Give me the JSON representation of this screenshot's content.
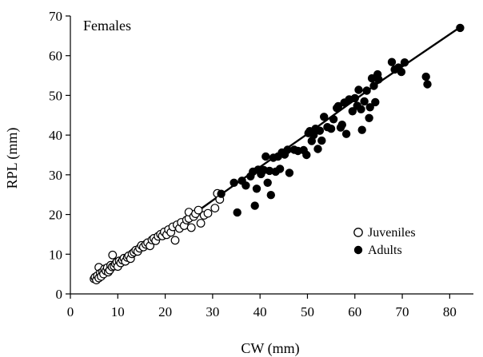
{
  "chart_data": {
    "type": "scatter",
    "title": "Females",
    "xlabel": "CW (mm)",
    "ylabel": "RPL (mm)",
    "xlim": [
      0,
      85
    ],
    "ylim": [
      0,
      70
    ],
    "x_ticks": [
      0,
      10,
      20,
      30,
      40,
      50,
      60,
      70,
      80
    ],
    "y_ticks": [
      0,
      10,
      20,
      30,
      40,
      50,
      60,
      70
    ],
    "grid": false,
    "legend_position": "lower-right",
    "series": [
      {
        "name": "Juveniles",
        "marker": "open-circle",
        "points": [
          [
            5.0,
            3.8
          ],
          [
            5.2,
            4.2
          ],
          [
            5.5,
            3.5
          ],
          [
            5.7,
            4.6
          ],
          [
            6.0,
            4.0
          ],
          [
            6.0,
            6.7
          ],
          [
            6.3,
            5.2
          ],
          [
            6.5,
            4.4
          ],
          [
            6.8,
            5.6
          ],
          [
            7.0,
            5.0
          ],
          [
            7.2,
            6.3
          ],
          [
            7.5,
            5.8
          ],
          [
            7.8,
            6.6
          ],
          [
            8.0,
            5.5
          ],
          [
            8.3,
            6.0
          ],
          [
            8.5,
            7.2
          ],
          [
            8.8,
            6.8
          ],
          [
            8.9,
            9.8
          ],
          [
            9.2,
            7.0
          ],
          [
            9.5,
            7.6
          ],
          [
            9.8,
            8.0
          ],
          [
            10.0,
            6.9
          ],
          [
            10.3,
            8.3
          ],
          [
            10.6,
            7.8
          ],
          [
            11.0,
            8.5
          ],
          [
            11.3,
            9.0
          ],
          [
            11.6,
            8.2
          ],
          [
            12.0,
            9.2
          ],
          [
            12.3,
            9.6
          ],
          [
            12.7,
            8.9
          ],
          [
            13.0,
            10.1
          ],
          [
            13.4,
            10.5
          ],
          [
            13.8,
            11.0
          ],
          [
            14.2,
            10.7
          ],
          [
            14.6,
            11.5
          ],
          [
            15.0,
            12.2
          ],
          [
            15.4,
            11.8
          ],
          [
            15.9,
            12.5
          ],
          [
            16.3,
            12.9
          ],
          [
            16.8,
            12.1
          ],
          [
            17.2,
            13.6
          ],
          [
            17.6,
            14.0
          ],
          [
            18.0,
            13.4
          ],
          [
            18.5,
            14.5
          ],
          [
            19.0,
            15.0
          ],
          [
            19.4,
            14.6
          ],
          [
            19.8,
            15.6
          ],
          [
            20.3,
            14.9
          ],
          [
            20.7,
            16.2
          ],
          [
            21.2,
            15.5
          ],
          [
            21.6,
            16.9
          ],
          [
            22.1,
            13.5
          ],
          [
            22.5,
            17.4
          ],
          [
            23.0,
            16.5
          ],
          [
            23.4,
            18.0
          ],
          [
            24.0,
            17.2
          ],
          [
            24.5,
            18.6
          ],
          [
            25.0,
            19.0
          ],
          [
            25.0,
            20.6
          ],
          [
            25.5,
            16.7
          ],
          [
            26.0,
            19.5
          ],
          [
            26.4,
            20.2
          ],
          [
            27.0,
            21.1
          ],
          [
            27.5,
            17.8
          ],
          [
            28.2,
            19.8
          ],
          [
            29.0,
            20.3
          ],
          [
            30.5,
            21.6
          ],
          [
            31.0,
            25.3
          ],
          [
            31.5,
            23.8
          ]
        ]
      },
      {
        "name": "Adults",
        "marker": "filled-circle",
        "points": [
          [
            31.8,
            25.2
          ],
          [
            34.5,
            28.0
          ],
          [
            35.2,
            20.5
          ],
          [
            36.2,
            28.5
          ],
          [
            37.0,
            27.3
          ],
          [
            38.0,
            29.6
          ],
          [
            38.5,
            30.8
          ],
          [
            38.9,
            22.2
          ],
          [
            39.3,
            26.5
          ],
          [
            39.6,
            31.3
          ],
          [
            40.2,
            30.2
          ],
          [
            40.8,
            31.2
          ],
          [
            41.2,
            34.6
          ],
          [
            41.6,
            28.0
          ],
          [
            42.0,
            31.0
          ],
          [
            42.3,
            24.9
          ],
          [
            42.8,
            34.3
          ],
          [
            43.3,
            30.8
          ],
          [
            43.8,
            34.6
          ],
          [
            44.2,
            31.5
          ],
          [
            44.6,
            35.6
          ],
          [
            45.2,
            35.1
          ],
          [
            45.8,
            36.3
          ],
          [
            46.2,
            30.5
          ],
          [
            47.2,
            36.3
          ],
          [
            48.0,
            36.0
          ],
          [
            49.2,
            36.2
          ],
          [
            49.8,
            35.0
          ],
          [
            50.2,
            40.5
          ],
          [
            50.5,
            41.0
          ],
          [
            50.9,
            38.5
          ],
          [
            51.3,
            40.0
          ],
          [
            51.7,
            41.6
          ],
          [
            52.2,
            36.5
          ],
          [
            52.6,
            41.1
          ],
          [
            53.0,
            38.6
          ],
          [
            53.5,
            44.6
          ],
          [
            54.2,
            42.0
          ],
          [
            55.0,
            41.6
          ],
          [
            55.5,
            44.0
          ],
          [
            56.2,
            46.8
          ],
          [
            56.5,
            47.3
          ],
          [
            57.0,
            41.9
          ],
          [
            57.3,
            42.6
          ],
          [
            57.8,
            48.2
          ],
          [
            58.2,
            40.3
          ],
          [
            58.8,
            49.0
          ],
          [
            59.5,
            46.0
          ],
          [
            60.0,
            49.3
          ],
          [
            60.5,
            47.4
          ],
          [
            60.8,
            51.4
          ],
          [
            61.3,
            46.5
          ],
          [
            61.5,
            41.3
          ],
          [
            62.0,
            48.5
          ],
          [
            62.5,
            51.2
          ],
          [
            63.0,
            44.3
          ],
          [
            63.2,
            47.0
          ],
          [
            63.6,
            54.3
          ],
          [
            64.0,
            52.4
          ],
          [
            64.3,
            48.3
          ],
          [
            64.8,
            55.3
          ],
          [
            65.0,
            54.0
          ],
          [
            67.8,
            58.4
          ],
          [
            68.4,
            56.5
          ],
          [
            69.2,
            57.0
          ],
          [
            69.8,
            55.9
          ],
          [
            70.5,
            58.3
          ],
          [
            75.0,
            54.7
          ],
          [
            75.3,
            52.8
          ],
          [
            82.2,
            67.0
          ]
        ]
      }
    ],
    "trend_line": {
      "style": "solid",
      "points": [
        [
          5,
          3.6
        ],
        [
          20,
          15.0
        ],
        [
          35,
          27.8
        ],
        [
          50,
          40.3
        ],
        [
          65,
          53.2
        ],
        [
          82,
          67.0
        ]
      ]
    },
    "colors": {
      "foreground": "#000000",
      "background": "#ffffff"
    }
  }
}
